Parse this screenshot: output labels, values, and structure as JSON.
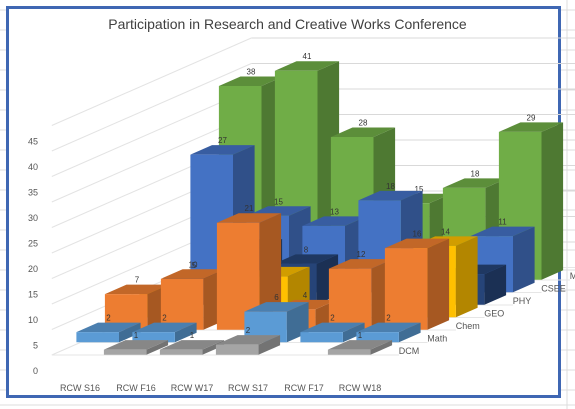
{
  "chart_data": {
    "type": "bar",
    "title": "Participation in Research and Creative Works Conference",
    "categories": [
      "RCW S16",
      "RCW F16",
      "RCW W17",
      "RCW S17",
      "RCW F17",
      "RCW W18"
    ],
    "ylim": [
      0,
      45
    ],
    "yticks": [
      0,
      5,
      10,
      15,
      20,
      25,
      30,
      35,
      40,
      45
    ],
    "grid": true,
    "series": [
      {
        "name": "DCM",
        "color": "#a5a5a5",
        "values": [
          null,
          1,
          1,
          2,
          null,
          1
        ]
      },
      {
        "name": "Math",
        "color": "#5b9bd5",
        "values": [
          2,
          2,
          null,
          6,
          2,
          2
        ]
      },
      {
        "name": "Chem",
        "color": "#ed7d31",
        "values": [
          7,
          10,
          21,
          4,
          12,
          16
        ]
      },
      {
        "name": "GEO",
        "color": "#ffc000",
        "values": [
          4,
          null,
          8,
          null,
          null,
          14
        ]
      },
      {
        "name": "PHY",
        "color": "#264478",
        "values": [
          5,
          11,
          8,
          null,
          5,
          6
        ]
      },
      {
        "name": "CSEE",
        "color": "#4472c4",
        "values": [
          27,
          15,
          13,
          18,
          null,
          11
        ]
      },
      {
        "name": "ME",
        "color": "#70ad47",
        "values": [
          38,
          41,
          28,
          15,
          18,
          29
        ]
      }
    ]
  }
}
